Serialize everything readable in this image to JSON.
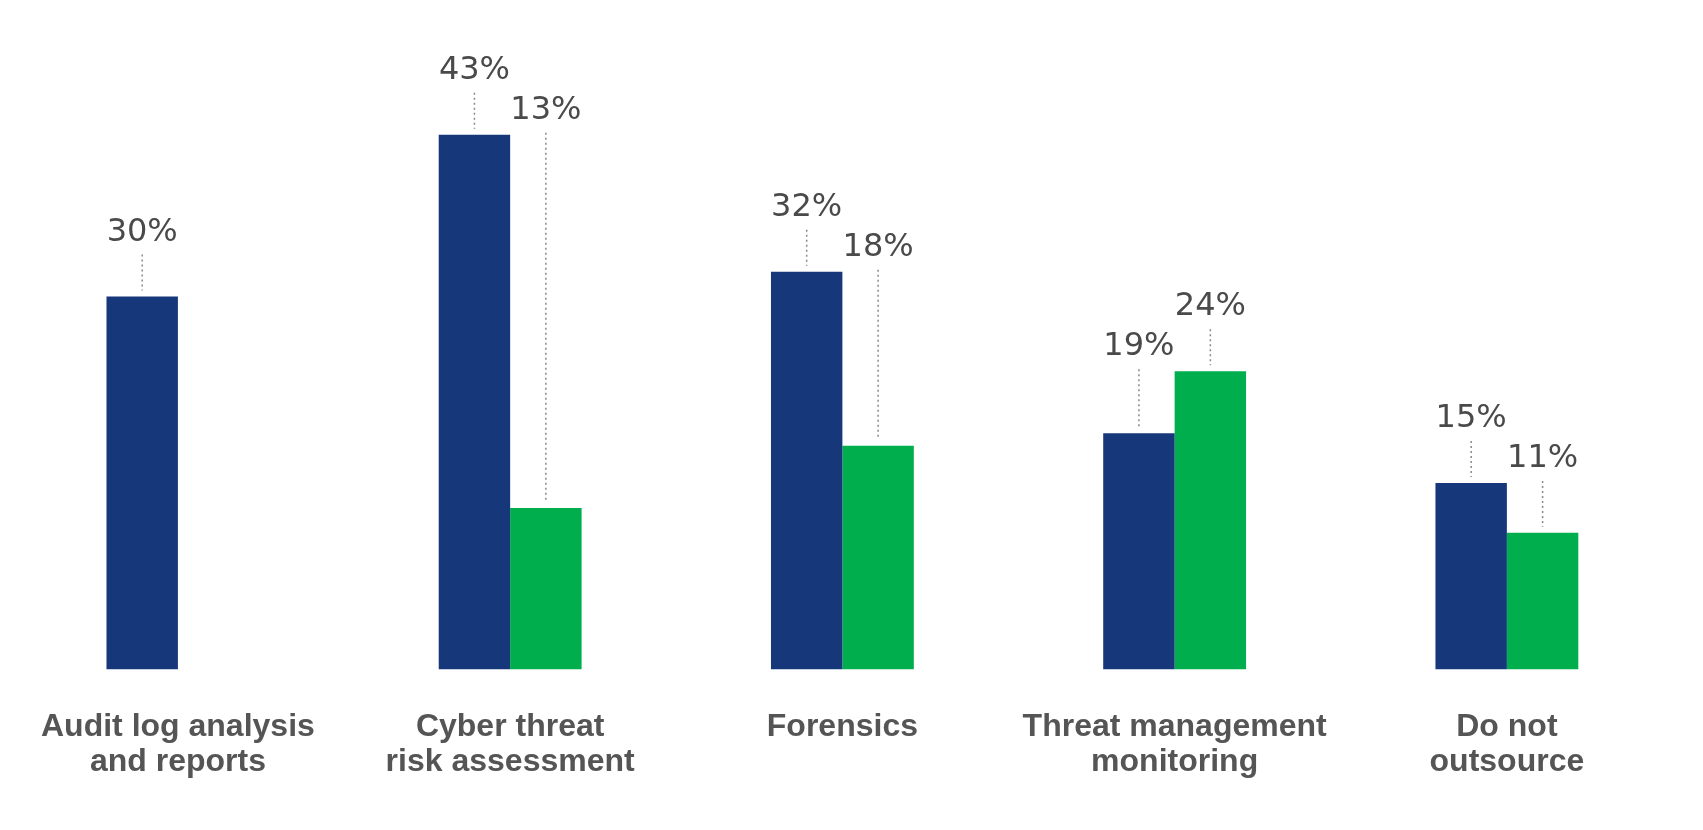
{
  "chart_data": {
    "type": "bar",
    "categories": [
      "Audit log analysis\nand reports",
      "Cyber threat\nrisk assessment",
      "Forensics",
      "Threat management\nmonitoring",
      "Do not\noutsource"
    ],
    "series": [
      {
        "color": "#17377b",
        "values": [
          30,
          43,
          32,
          19,
          15
        ],
        "value_labels": [
          "30%",
          "43%",
          "32%",
          "19%",
          "15%"
        ]
      },
      {
        "color": "#00ae4d",
        "values": [
          null,
          13,
          18,
          24,
          11
        ],
        "value_labels": [
          null,
          "13%",
          "18%",
          "24%",
          "11%"
        ]
      }
    ],
    "grid": false,
    "legend": false
  }
}
